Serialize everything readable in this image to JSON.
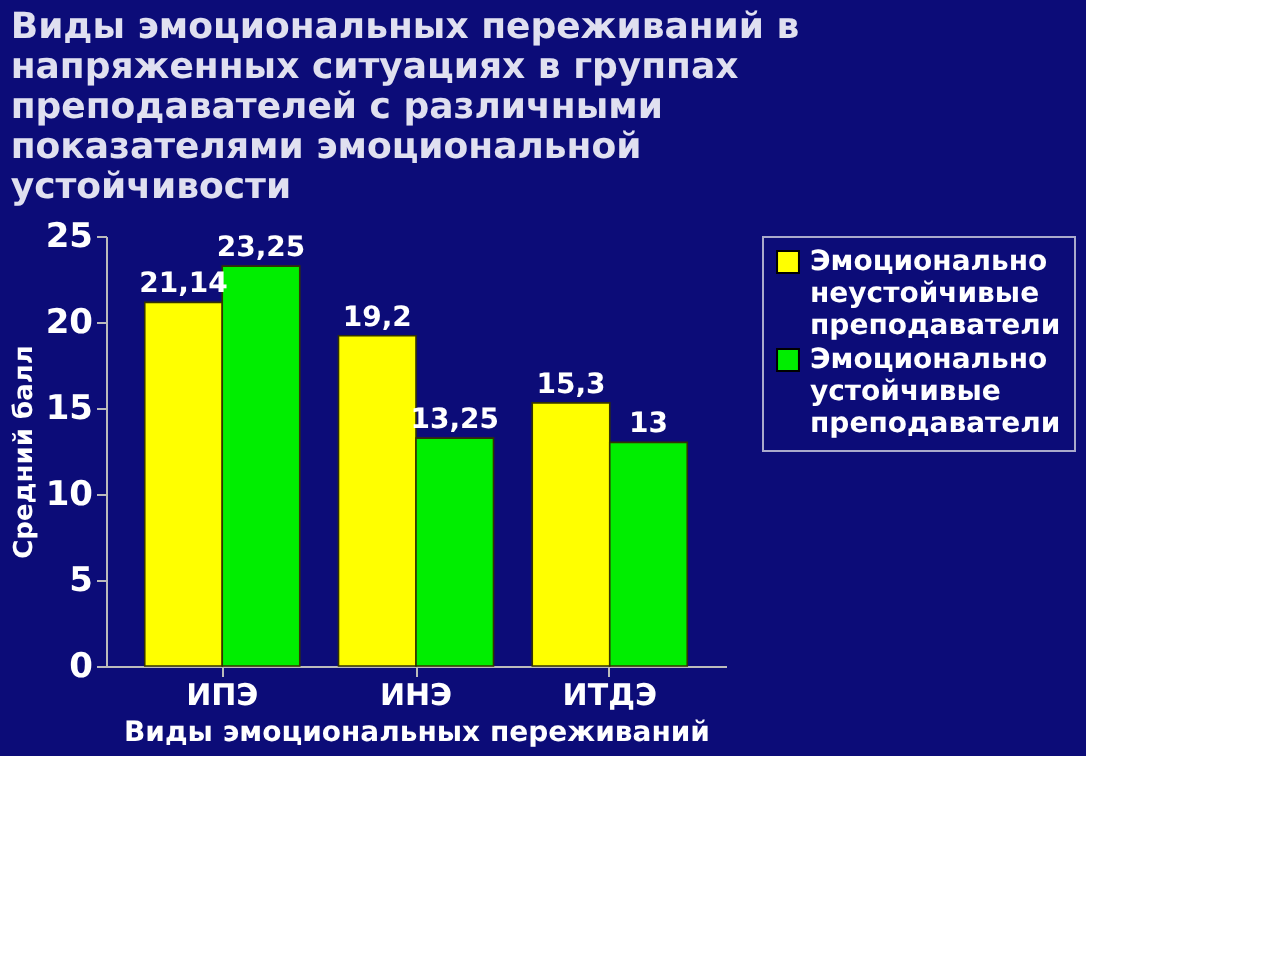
{
  "chart_data": {
    "type": "bar",
    "title": "Виды эмоциональных переживаний в напряженных ситуациях в группах преподавателей с различными показателями эмоциональной устойчивости",
    "xlabel": "Виды эмоциональных переживаний",
    "ylabel": "Средний балл",
    "categories": [
      "ИПЭ",
      "ИНЭ",
      "ИТДЭ",
      null
    ],
    "series": [
      {
        "name": "Эмоционально неустойчивые преподаватели",
        "color": "#ffff00",
        "values": [
          21.14,
          19.2,
          15.3,
          null
        ],
        "value_labels": [
          "21,14",
          "19,2",
          "15,3",
          null
        ]
      },
      {
        "name": "Эмоционально устойчивые преподаватели",
        "color": "#00ee00",
        "values": [
          23.25,
          13.25,
          13,
          null
        ],
        "value_labels": [
          "23,25",
          "13,25",
          "13",
          null
        ]
      }
    ],
    "ylim": [
      0,
      25
    ],
    "yticks": [
      0,
      5,
      10,
      15,
      20,
      25
    ],
    "grid": false,
    "legend": "right"
  }
}
